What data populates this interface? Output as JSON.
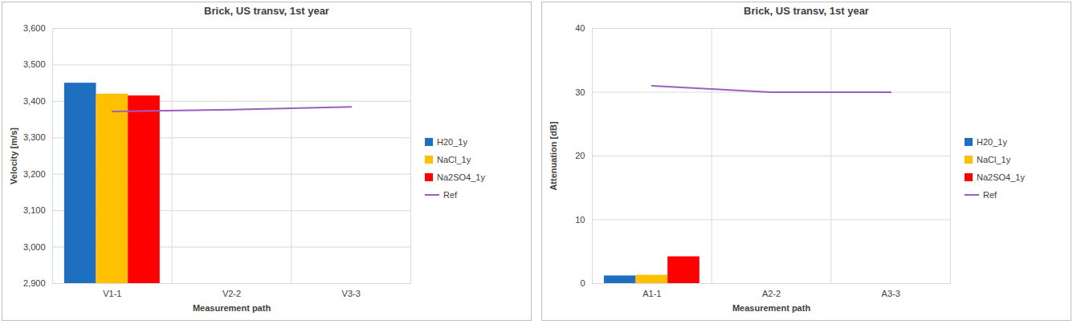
{
  "chart_data": [
    {
      "type": "bar",
      "title": "Brick, US transv, 1st year",
      "x_label": "Measurement path",
      "y_label": "Velocity [m/s]",
      "categories": [
        "V1-1",
        "V2-2",
        "V3-3"
      ],
      "series": [
        {
          "name": "H20_1y",
          "type": "bar",
          "color": "#1f6fc0",
          "values": [
            3450,
            null,
            null
          ]
        },
        {
          "name": "NaCl_1y",
          "type": "bar",
          "color": "#ffc000",
          "values": [
            3420,
            null,
            null
          ]
        },
        {
          "name": "Na2SO4_1y",
          "type": "bar",
          "color": "#ff0000",
          "values": [
            3415,
            null,
            null
          ]
        },
        {
          "name": "Ref",
          "type": "line",
          "color": "#9b5fc0",
          "values": [
            3372,
            3377,
            3385
          ]
        }
      ],
      "ylim": [
        2900,
        3600
      ],
      "yticks": [
        2900,
        3000,
        3100,
        3200,
        3300,
        3400,
        3500,
        3600
      ],
      "grid": true,
      "legend": "right"
    },
    {
      "type": "bar",
      "title": "Brick, US transv, 1st year",
      "x_label": "Measurement path",
      "y_label": "Attenuation [dB]",
      "categories": [
        "A1-1",
        "A2-2",
        "A3-3"
      ],
      "series": [
        {
          "name": "H20_1y",
          "type": "bar",
          "color": "#1f6fc0",
          "values": [
            1.2,
            null,
            null
          ]
        },
        {
          "name": "NaCl_1y",
          "type": "bar",
          "color": "#ffc000",
          "values": [
            1.3,
            null,
            null
          ]
        },
        {
          "name": "Na2SO4_1y",
          "type": "bar",
          "color": "#ff0000",
          "values": [
            4.2,
            null,
            null
          ]
        },
        {
          "name": "Ref",
          "type": "line",
          "color": "#9b5fc0",
          "values": [
            31,
            30,
            30
          ]
        }
      ],
      "ylim": [
        0,
        40
      ],
      "yticks": [
        0,
        10,
        20,
        30,
        40
      ],
      "grid": true,
      "legend": "right"
    }
  ]
}
